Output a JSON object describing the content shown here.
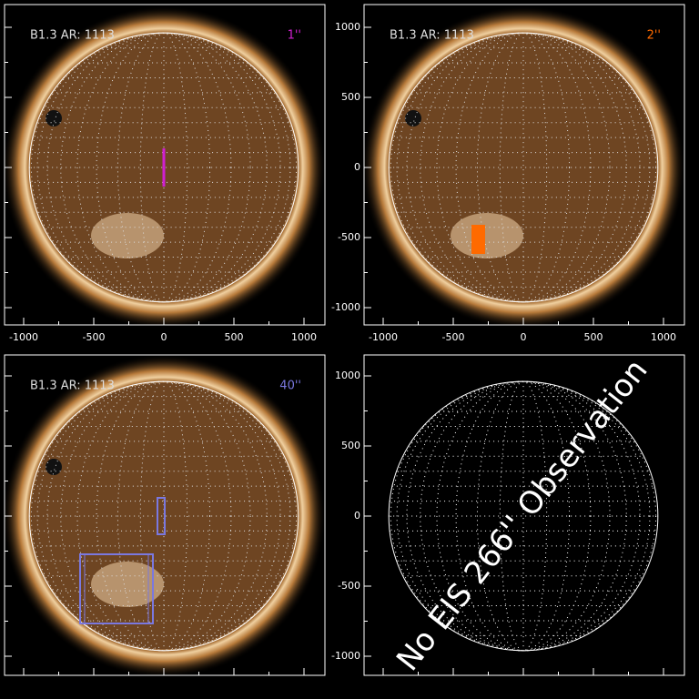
{
  "panels": [
    {
      "title": "B1.3 AR: 1113",
      "slit": "1''",
      "slit_color": "#d020d0",
      "xticks": [
        -1000,
        -500,
        0,
        500,
        1000
      ]
    },
    {
      "title": "B1.3 AR: 1113",
      "slit": "2''",
      "slit_color": "#ff6a00",
      "xticks": [
        -1000,
        -500,
        0,
        500,
        1000
      ],
      "yticks": [
        -1000,
        -500,
        0,
        500,
        1000
      ]
    },
    {
      "title": "B1.3 AR: 1113",
      "slit": "40''",
      "slit_color": "#7a78e0"
    },
    {
      "message": "No EIS 266'' Observation",
      "yticks": [
        -1000,
        -500,
        0,
        500,
        1000
      ]
    }
  ]
}
